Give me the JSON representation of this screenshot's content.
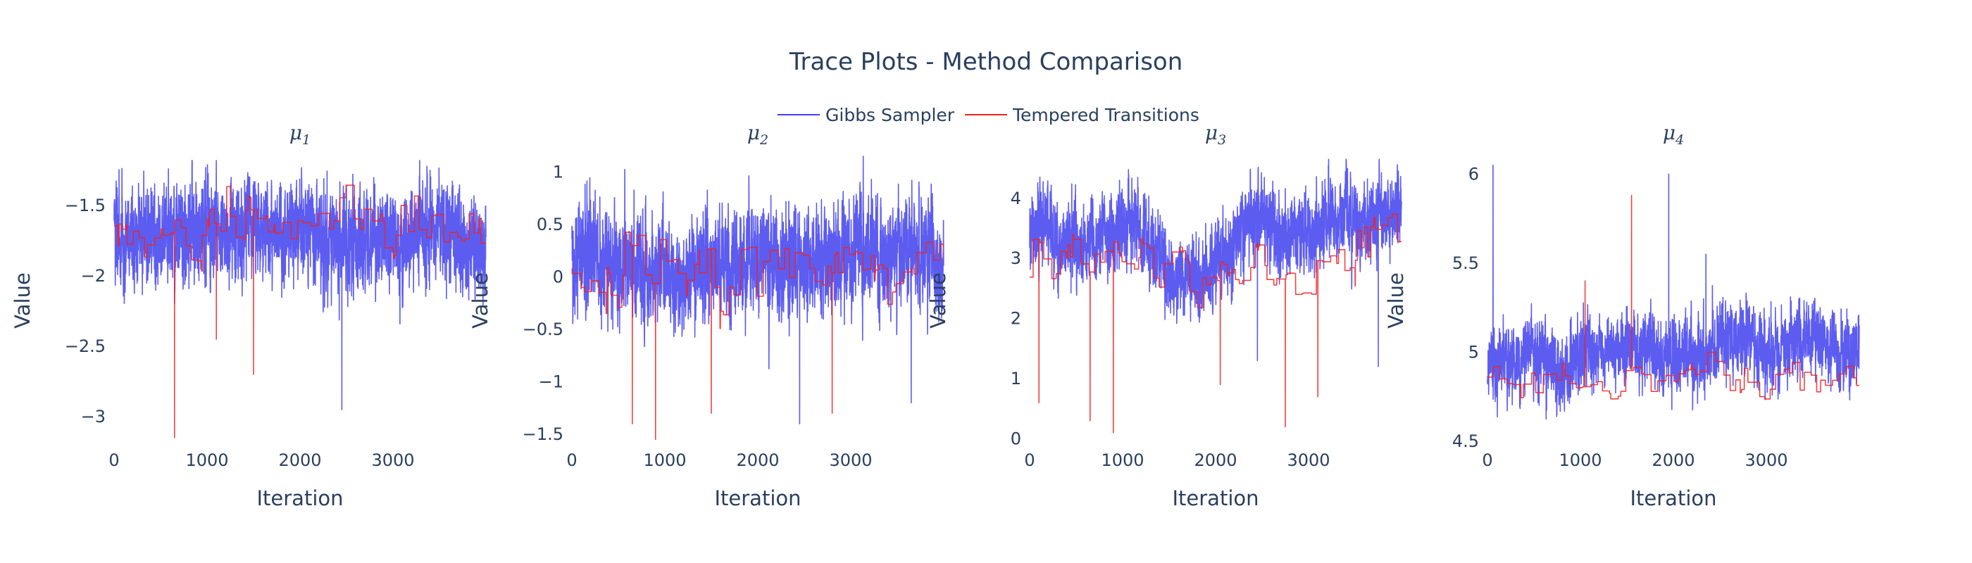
{
  "chart_data": {
    "type": "line",
    "title": "Trace Plots - Method Comparison",
    "legend_placement": "top-center",
    "series_styles": [
      {
        "name": "Gibbs Sampler",
        "color": "#4040ee"
      },
      {
        "name": "Tempered Transitions",
        "color": "#ee2222"
      }
    ],
    "iterations": 4000,
    "panels": [
      {
        "subtitle": "μ1",
        "sym": "μ",
        "sub": "1",
        "xlabel": "Iteration",
        "ylabel": "Value",
        "xlim": [
          0,
          4000
        ],
        "ylim": [
          -3.2,
          -1.15
        ],
        "xticks": [
          0,
          1000,
          2000,
          3000
        ],
        "xtick_labels": [
          "0",
          "1000",
          "2000",
          "3000"
        ],
        "yticks": [
          -3,
          -2.5,
          -2,
          -1.5
        ],
        "ytick_labels": [
          "−3",
          "−2.5",
          "−2",
          "−1.5"
        ],
        "series": [
          {
            "name": "Gibbs Sampler",
            "center": -1.7,
            "amp": 0.32,
            "wander": 0.15,
            "ymin": -2.95,
            "ymax": -1.18,
            "runmax": 1,
            "dips": [
              [
                2450,
                -2.95
              ]
            ]
          },
          {
            "name": "Tempered Transitions",
            "center": -1.65,
            "amp": 0.22,
            "wander": 0.1,
            "ymin": -3.15,
            "ymax": -1.18,
            "runmax": 90,
            "dips": [
              [
                650,
                -3.15
              ],
              [
                1500,
                -2.7
              ],
              [
                1100,
                -2.45
              ]
            ]
          }
        ]
      },
      {
        "subtitle": "μ2",
        "sym": "μ",
        "sub": "2",
        "xlabel": "Iteration",
        "ylabel": "Value",
        "xlim": [
          0,
          4000
        ],
        "ylim": [
          -1.6,
          1.15
        ],
        "xticks": [
          0,
          1000,
          2000,
          3000
        ],
        "xtick_labels": [
          "0",
          "1000",
          "2000",
          "3000"
        ],
        "yticks": [
          -1.5,
          -1,
          -0.5,
          0,
          0.5,
          1
        ],
        "ytick_labels": [
          "−1.5",
          "−1",
          "−0.5",
          "0",
          "0.5",
          "1"
        ],
        "series": [
          {
            "name": "Gibbs Sampler",
            "center": 0.15,
            "amp": 0.45,
            "wander": 0.3,
            "ymin": -1.45,
            "ymax": 1.15,
            "runmax": 1,
            "dips": [
              [
                2450,
                -1.4
              ],
              [
                3650,
                -1.2
              ]
            ]
          },
          {
            "name": "Tempered Transitions",
            "center": 0.05,
            "amp": 0.35,
            "wander": 0.15,
            "ymin": -1.55,
            "ymax": 1.05,
            "runmax": 90,
            "dips": [
              [
                650,
                -1.4
              ],
              [
                900,
                -1.55
              ],
              [
                1500,
                -1.3
              ],
              [
                2800,
                -1.3
              ]
            ]
          }
        ]
      },
      {
        "subtitle": "μ3",
        "sym": "μ",
        "sub": "3",
        "xlabel": "Iteration",
        "ylabel": "Value",
        "xlim": [
          0,
          4000
        ],
        "ylim": [
          -0.1,
          4.7
        ],
        "xticks": [
          0,
          1000,
          2000,
          3000
        ],
        "xtick_labels": [
          "0",
          "1000",
          "2000",
          "3000"
        ],
        "yticks": [
          0,
          1,
          2,
          3,
          4
        ],
        "ytick_labels": [
          "0",
          "1",
          "2",
          "3",
          "4"
        ],
        "series": [
          {
            "name": "Gibbs Sampler",
            "center": 3.4,
            "amp": 0.6,
            "wander": 0.9,
            "ymin": 0.9,
            "ymax": 4.65,
            "runmax": 1,
            "dips": [
              [
                2450,
                1.3
              ],
              [
                3750,
                1.2
              ]
            ]
          },
          {
            "name": "Tempered Transitions",
            "center": 3.0,
            "amp": 0.5,
            "wander": 0.9,
            "ymin": 0.05,
            "ymax": 4.65,
            "runmax": 90,
            "dips": [
              [
                100,
                0.6
              ],
              [
                650,
                0.3
              ],
              [
                900,
                0.1
              ],
              [
                2750,
                0.2
              ],
              [
                3100,
                0.7
              ],
              [
                2050,
                0.9
              ]
            ]
          }
        ]
      },
      {
        "subtitle": "μ4",
        "sym": "μ",
        "sub": "4",
        "xlabel": "Iteration",
        "ylabel": "Value",
        "xlim": [
          0,
          4000
        ],
        "ylim": [
          4.48,
          6.1
        ],
        "xticks": [
          0,
          1000,
          2000,
          3000
        ],
        "xtick_labels": [
          "0",
          "1000",
          "2000",
          "3000"
        ],
        "yticks": [
          4.5,
          5,
          5.5,
          6
        ],
        "ytick_labels": [
          "4.5",
          "5",
          "5.5",
          "6"
        ],
        "series": [
          {
            "name": "Gibbs Sampler",
            "center": 4.95,
            "amp": 0.18,
            "wander": 0.2,
            "ymin": 4.55,
            "ymax": 6.08,
            "runmax": 1,
            "spikes": [
              [
                60,
                6.05
              ],
              [
                1950,
                6.0
              ],
              [
                2350,
                5.55
              ]
            ]
          },
          {
            "name": "Tempered Transitions",
            "center": 4.85,
            "amp": 0.12,
            "wander": 0.08,
            "ymin": 4.5,
            "ymax": 5.9,
            "runmax": 90,
            "spikes": [
              [
                1550,
                5.88
              ],
              [
                1050,
                5.4
              ]
            ]
          }
        ]
      }
    ]
  }
}
